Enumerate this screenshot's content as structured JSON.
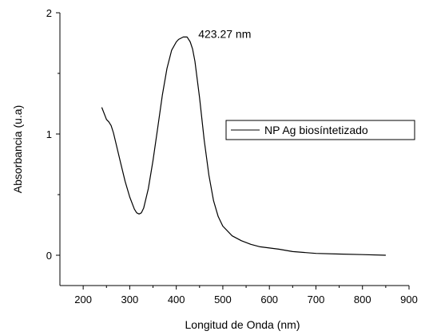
{
  "chart_data": {
    "type": "line",
    "title": "",
    "xlabel": "Longitud de Onda (nm)",
    "ylabel": "Absorbancia (u.a)",
    "xlim": [
      150,
      900
    ],
    "ylim": [
      -0.25,
      2
    ],
    "xticks": [
      200,
      300,
      400,
      500,
      600,
      700,
      800,
      900
    ],
    "yticks": [
      0,
      1,
      2
    ],
    "grid": false,
    "legend_position": "center-right",
    "annotations": [
      {
        "text": "423.27 nm",
        "x": 423.27,
        "y": 1.78
      }
    ],
    "series": [
      {
        "name": "NP Ag biosíntetizado",
        "color": "#000000",
        "x": [
          240,
          250,
          255,
          260,
          265,
          270,
          280,
          290,
          300,
          310,
          315,
          320,
          325,
          330,
          340,
          350,
          360,
          370,
          380,
          390,
          400,
          405,
          410,
          415,
          420,
          423.27,
          425,
          430,
          435,
          440,
          450,
          460,
          470,
          480,
          490,
          500,
          520,
          540,
          560,
          580,
          600,
          620,
          650,
          700,
          750,
          800,
          850
        ],
        "y": [
          1.22,
          1.12,
          1.1,
          1.07,
          1.01,
          0.93,
          0.77,
          0.61,
          0.48,
          0.38,
          0.35,
          0.34,
          0.35,
          0.39,
          0.55,
          0.78,
          1.05,
          1.32,
          1.54,
          1.69,
          1.76,
          1.78,
          1.79,
          1.8,
          1.8,
          1.8,
          1.79,
          1.76,
          1.7,
          1.6,
          1.3,
          0.95,
          0.66,
          0.45,
          0.32,
          0.24,
          0.16,
          0.12,
          0.09,
          0.07,
          0.06,
          0.05,
          0.03,
          0.015,
          0.01,
          0.005,
          0.0
        ]
      }
    ]
  }
}
